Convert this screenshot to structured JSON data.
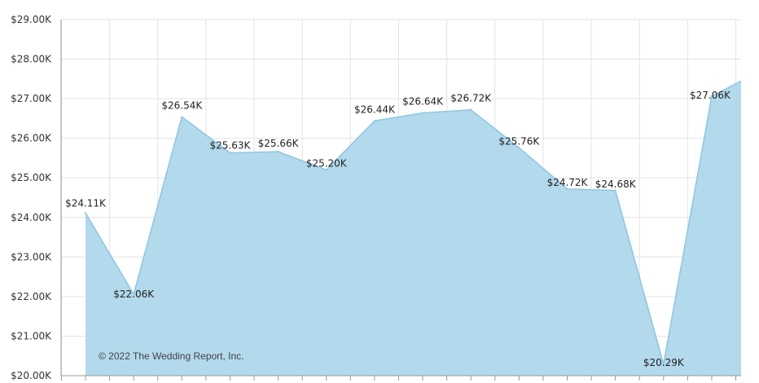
{
  "chart_data": {
    "type": "area",
    "x": [
      "",
      "",
      "",
      "",
      "",
      "",
      "",
      "",
      "",
      "",
      "",
      "",
      "",
      ""
    ],
    "values": [
      24.11,
      22.06,
      26.54,
      25.63,
      25.66,
      25.2,
      26.44,
      26.64,
      26.72,
      25.76,
      24.72,
      24.68,
      20.29,
      27.06
    ],
    "data_labels": [
      "$24.11K",
      "$22.06K",
      "$26.54K",
      "$25.63K",
      "$25.66K",
      "$25.20K",
      "$26.44K",
      "$26.64K",
      "$26.72K",
      "$25.76K",
      "$24.72K",
      "$24.68K",
      "$20.29K",
      "$27.06K"
    ],
    "trailing_value": 27.45,
    "y_ticks": [
      "$20.00K",
      "$21.00K",
      "$22.00K",
      "$23.00K",
      "$24.00K",
      "$25.00K",
      "$26.00K",
      "$27.00K",
      "$28.00K",
      "$29.00K"
    ],
    "ylim": [
      20,
      29
    ],
    "grid": true,
    "legend": "none",
    "fill_color": "#b3d9ec",
    "line_color": "#8ec6e2"
  },
  "credit": "© 2022 The Wedding Report, Inc."
}
